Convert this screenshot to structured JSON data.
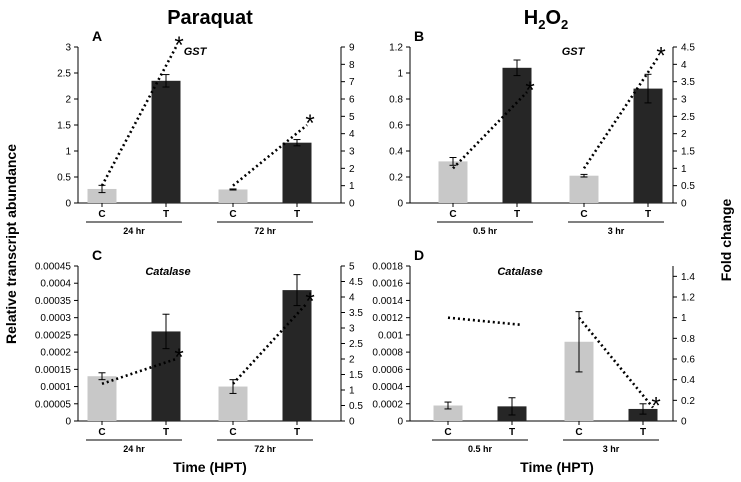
{
  "headers": {
    "left": "Paraquat",
    "right_base": "H",
    "right_sub": "2",
    "right_base2": "O",
    "right_sub2": "2"
  },
  "y_label_left": "Relative transcript abundance",
  "y_label_right": "Fold change",
  "x_label": "Time (HPT)",
  "colors": {
    "control": "#c8c8c8",
    "treated": "#262626",
    "line": "#000000"
  },
  "chart_data": [
    {
      "type": "bar",
      "panel": "A",
      "gene": "GST",
      "treatment": "Paraquat",
      "groups": [
        "24 hr",
        "72 hr"
      ],
      "categories": [
        "C",
        "T",
        "C",
        "T"
      ],
      "values": [
        0.27,
        2.35,
        0.26,
        1.16
      ],
      "errors": [
        0.07,
        0.12,
        0.01,
        0.06
      ],
      "ylim": [
        0,
        3
      ],
      "yticks": [
        "0",
        "0.5",
        "1",
        "1.5",
        "2",
        "2.5",
        "3"
      ],
      "fold_change": {
        "ylim": [
          0,
          9
        ],
        "yticks": [
          "0",
          "1",
          "2",
          "3",
          "4",
          "5",
          "6",
          "7",
          "8",
          "9"
        ],
        "segments": [
          [
            1,
            9
          ],
          [
            1,
            4.5
          ]
        ],
        "stars": [
          "*",
          "*"
        ]
      }
    },
    {
      "type": "bar",
      "panel": "B",
      "gene": "GST",
      "treatment": "H2O2",
      "groups": [
        "0.5 hr",
        "3 hr"
      ],
      "categories": [
        "C",
        "T",
        "C",
        "T"
      ],
      "values": [
        0.32,
        1.04,
        0.21,
        0.88
      ],
      "errors": [
        0.03,
        0.06,
        0.01,
        0.11
      ],
      "ylim": [
        0,
        1.2
      ],
      "yticks": [
        "0",
        "0.2",
        "0.4",
        "0.6",
        "0.8",
        "1",
        "1.2"
      ],
      "fold_change": {
        "ylim": [
          0,
          4.5
        ],
        "yticks": [
          "0",
          "0.5",
          "1",
          "1.5",
          "2",
          "2.5",
          "3",
          "3.5",
          "4",
          "4.5"
        ],
        "segments": [
          [
            1,
            3.2
          ],
          [
            1,
            4.2
          ]
        ],
        "stars": [
          "*",
          "*"
        ]
      }
    },
    {
      "type": "bar",
      "panel": "C",
      "gene": "Catalase",
      "treatment": "Paraquat",
      "groups": [
        "24 hr",
        "72 hr"
      ],
      "categories": [
        "C",
        "T",
        "C",
        "T"
      ],
      "values": [
        0.00013,
        0.00026,
        0.0001,
        0.00038
      ],
      "errors": [
        1e-05,
        5e-05,
        2e-05,
        4.5e-05
      ],
      "ylim": [
        0,
        0.00045
      ],
      "yticks": [
        "0",
        "0.00005",
        "0.0001",
        "0.00015",
        "0.0002",
        "0.00025",
        "0.0003",
        "0.00035",
        "0.0004",
        "0.00045"
      ],
      "fold_change": {
        "ylim": [
          0,
          5
        ],
        "yticks": [
          "0",
          "0.5",
          "1",
          "1.5",
          "2",
          "2.5",
          "3",
          "3.5",
          "4",
          "4.5",
          "5"
        ],
        "segments": [
          [
            1.2,
            2
          ],
          [
            1.2,
            3.8
          ]
        ],
        "stars": [
          "*",
          "*"
        ]
      }
    },
    {
      "type": "bar",
      "panel": "D",
      "gene": "Catalase",
      "treatment": "H2O2",
      "groups": [
        "0.5 hr",
        "3 hr"
      ],
      "categories": [
        "C",
        "T",
        "C",
        "T"
      ],
      "values": [
        0.00018,
        0.00017,
        0.00092,
        0.00014
      ],
      "errors": [
        4e-05,
        0.0001,
        0.00035,
        6e-05
      ],
      "ylim": [
        0,
        0.0018
      ],
      "yticks": [
        "0",
        "0.0002",
        "0.0004",
        "0.0006",
        "0.0008",
        "0.001",
        "0.0012",
        "0.0014",
        "0.0016",
        "0.0018"
      ],
      "fold_change": {
        "ylim": [
          0,
          1.5
        ],
        "yticks": [
          "0",
          "0.2",
          "0.4",
          "0.6",
          "0.8",
          "1",
          "1.2",
          "1.4"
        ],
        "segments": [
          [
            1,
            0.93
          ],
          [
            1,
            0.13
          ]
        ],
        "stars": [
          "",
          "*"
        ]
      }
    }
  ]
}
